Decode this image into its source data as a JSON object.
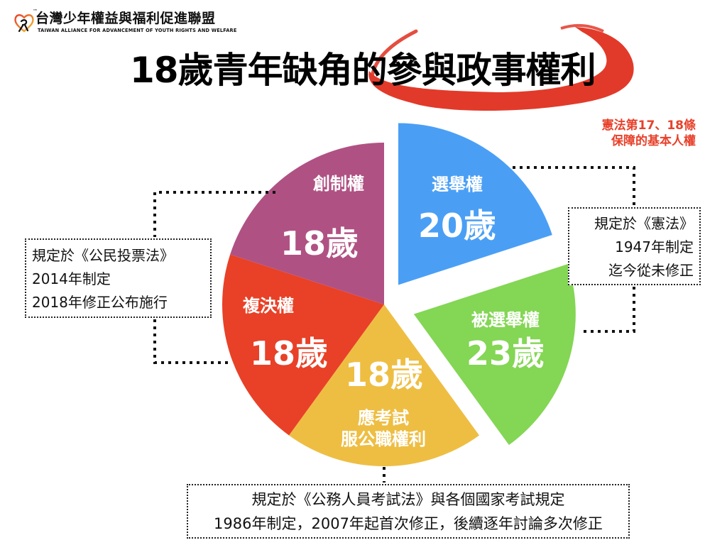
{
  "header": {
    "logo_icon": "heart-figure-logo-icon",
    "trademark": "™",
    "org_name": "台灣少年權益與福利促進聯盟",
    "org_name_en": "TAIWAN ALLIANCE FOR ADVANCEMENT OF YOUTH RIGHTS AND WELFARE"
  },
  "title": {
    "text": "18歲青年缺角的參與政事權利",
    "highlight": "參與政事權利",
    "highlight_color": "#e23a2a"
  },
  "annotation": {
    "line1": "憲法第17、18條",
    "line2": "保障的基本人權",
    "color": "#e8402a"
  },
  "callouts": {
    "left": {
      "lines": [
        "規定於《公民投票法》",
        "2014年制定",
        "2018年修正公布施行"
      ]
    },
    "right": {
      "lines": [
        "規定於《憲法》",
        "1947年制定",
        "迄今從未修正"
      ]
    },
    "bottom": {
      "lines": [
        "規定於《公務人員考試法》與各個國家考試規定",
        "1986年制定，2007年起首次修正，後續逐年討論多次修正"
      ]
    }
  },
  "chart_data": {
    "type": "pie",
    "title": "18歲青年缺角的參與政事權利",
    "categories": [
      "選舉權",
      "被選舉權",
      "應考試服公職權利",
      "複決權",
      "創制權"
    ],
    "values": [
      20,
      23,
      18,
      18,
      18
    ],
    "unit": "歲",
    "legend": "none",
    "slices": [
      {
        "label": "選舉權",
        "age_label": "20歲",
        "age": 20,
        "share": 20,
        "color": "#4a9ff5",
        "explode": 34
      },
      {
        "label": "被選舉權",
        "age_label": "23歲",
        "age": 23,
        "share": 20,
        "color": "#84d655",
        "explode": 44
      },
      {
        "label": "應考試",
        "label2": "服公職權利",
        "age_label": "18歲",
        "age": 18,
        "share": 20,
        "color": "#eebe43",
        "explode": 0
      },
      {
        "label": "複決權",
        "age_label": "18歲",
        "age": 18,
        "share": 20,
        "color": "#e84127",
        "explode": 0
      },
      {
        "label": "創制權",
        "age_label": "18歲",
        "age": 18,
        "share": 20,
        "color": "#b05184",
        "explode": 0
      }
    ]
  }
}
